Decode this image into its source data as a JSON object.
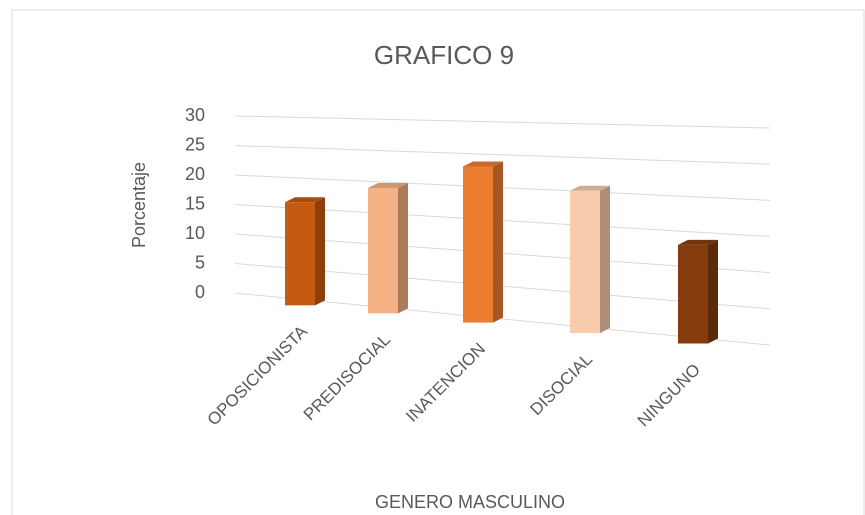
{
  "chart_data": {
    "type": "bar",
    "title": "GRAFICO 9",
    "y_label": "Porcentaje",
    "x_label": "GENERO MASCULINO",
    "categories": [
      "OPOSICIONISTA",
      "PREDISOCIAL",
      "INATENCION",
      "DISOCIAL",
      "NINGUNO"
    ],
    "values": [
      17,
      20,
      24,
      21,
      14
    ],
    "colors": [
      "#c55a11",
      "#f4b183",
      "#ed7d31",
      "#f8cbad",
      "#843c0c"
    ],
    "ylim": [
      0,
      30
    ],
    "yticks": [
      0,
      5,
      10,
      15,
      20,
      25,
      30
    ],
    "grid": true
  }
}
